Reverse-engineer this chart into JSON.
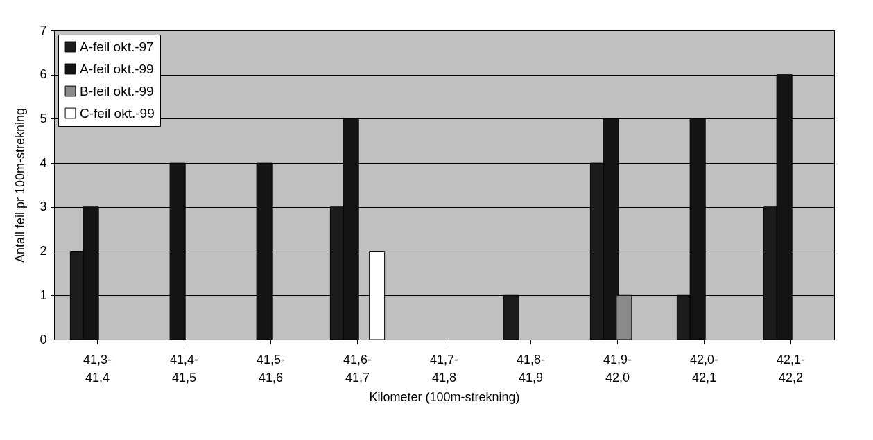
{
  "chart_data": {
    "type": "bar",
    "xlabel": "Kilometer (100m-strekning)",
    "ylabel": "Antall feil pr 100m-strekning",
    "categories": [
      "41,3-41,4",
      "41,4-41,5",
      "41,5-41,6",
      "41,6-41,7",
      "41,7-41,8",
      "41,8-41,9",
      "41,9-42,0",
      "42,0-42,1",
      "42,1-42,2"
    ],
    "series": [
      {
        "name": "A-feil okt.-97",
        "color": "#1c1c1c",
        "values": [
          2,
          0,
          0,
          3,
          0,
          1,
          4,
          1,
          3
        ]
      },
      {
        "name": "A-feil okt.-99",
        "color": "#141414",
        "values": [
          3,
          4,
          4,
          5,
          0,
          0,
          5,
          5,
          6
        ]
      },
      {
        "name": "B-feil okt.-99",
        "color": "#8a8a8a",
        "values": [
          0,
          0,
          0,
          0,
          0,
          0,
          1,
          0,
          0
        ]
      },
      {
        "name": "C-feil okt.-99",
        "color": "#ffffff",
        "values": [
          0,
          0,
          0,
          2,
          0,
          0,
          0,
          0,
          0
        ]
      }
    ],
    "ylim": [
      0,
      7
    ],
    "yticks": [
      0,
      1,
      2,
      3,
      4,
      5,
      6,
      7
    ],
    "grid": "y",
    "legend": "top left"
  }
}
